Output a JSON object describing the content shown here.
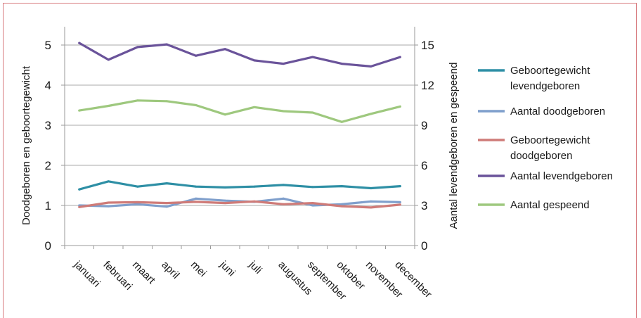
{
  "chart_data": {
    "type": "line",
    "categories": [
      "januari",
      "februari",
      "maart",
      "april",
      "mei",
      "juni",
      "juli",
      "augustus",
      "september",
      "oktober",
      "november",
      "december"
    ],
    "left_axis": {
      "label": "Doodgeboren en geboortegewicht",
      "ticks": [
        "0",
        "1",
        "2",
        "3",
        "4",
        "5"
      ],
      "range": [
        0,
        5.5
      ]
    },
    "right_axis": {
      "label": "Aantal levendgeboren en gespeend",
      "ticks": [
        "0",
        "3",
        "6",
        "9",
        "12",
        "15"
      ],
      "range": [
        0,
        16.5
      ]
    },
    "series": [
      {
        "name": "Geboortegewicht levendgeboren",
        "axis": "left",
        "color": "#2e8fa5",
        "values": [
          1.4,
          1.6,
          1.47,
          1.55,
          1.47,
          1.45,
          1.47,
          1.51,
          1.46,
          1.48,
          1.43,
          1.48
        ]
      },
      {
        "name": "Aantal doodgeboren",
        "axis": "left",
        "color": "#7f9fcc",
        "values": [
          1.0,
          0.98,
          1.03,
          0.97,
          1.17,
          1.12,
          1.09,
          1.17,
          1.0,
          1.03,
          1.1,
          1.08
        ]
      },
      {
        "name": "Geboortegewicht doodgeboren",
        "axis": "left",
        "color": "#cf7b78",
        "values": [
          0.96,
          1.07,
          1.08,
          1.06,
          1.09,
          1.06,
          1.1,
          1.03,
          1.06,
          0.98,
          0.95,
          1.02
        ]
      },
      {
        "name": "Aantal levendgeboren",
        "axis": "right",
        "color": "#6a539a",
        "values": [
          15.15,
          13.9,
          14.85,
          15.05,
          14.2,
          14.7,
          13.85,
          13.6,
          14.1,
          13.6,
          13.4,
          14.1
        ]
      },
      {
        "name": "Aantal gespeend",
        "axis": "right",
        "color": "#9ec87e",
        "values": [
          10.1,
          10.45,
          10.85,
          10.8,
          10.5,
          9.8,
          10.35,
          10.05,
          9.95,
          9.25,
          9.85,
          10.4
        ]
      }
    ],
    "legend": {
      "position": "right",
      "items": [
        {
          "lines": [
            "Geboortegewicht",
            "levendgeboren"
          ],
          "color": "#2e8fa5"
        },
        {
          "lines": [
            "Aantal doodgeboren"
          ],
          "color": "#7f9fcc"
        },
        {
          "lines": [
            "Geboortegewicht",
            "doodgeboren"
          ],
          "color": "#cf7b78"
        },
        {
          "lines": [
            "Aantal levendgeboren"
          ],
          "color": "#6a539a"
        },
        {
          "lines": [
            "Aantal gespeend"
          ],
          "color": "#9ec87e"
        }
      ]
    },
    "grid": true
  }
}
